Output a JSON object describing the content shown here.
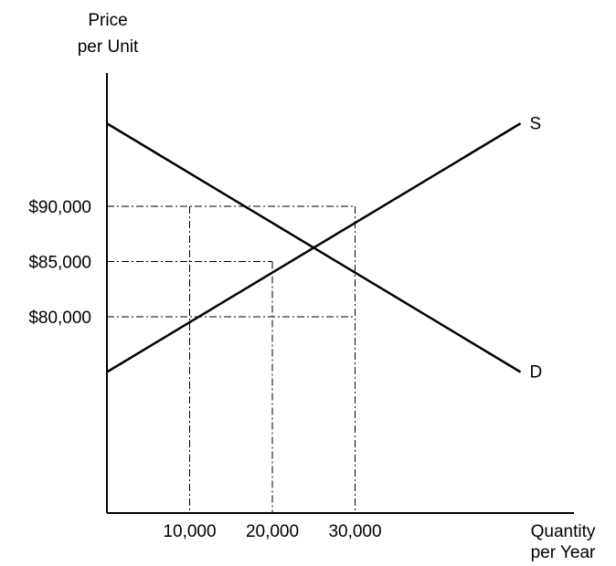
{
  "chart_data": {
    "type": "line",
    "title": "",
    "ylabel": [
      "Price",
      "per Unit"
    ],
    "xlabel": [
      "Quantity",
      "per Year"
    ],
    "xlim": [
      0,
      50000
    ],
    "ylim": [
      62000,
      102000
    ],
    "grid": false,
    "x_ticks": [
      {
        "value": 10000,
        "label": "10,000"
      },
      {
        "value": 20000,
        "label": "20,000"
      },
      {
        "value": 30000,
        "label": "30,000"
      }
    ],
    "y_ticks": [
      {
        "value": 80000,
        "label": "$80,000"
      },
      {
        "value": 85000,
        "label": "$85,000"
      },
      {
        "value": 90000,
        "label": "$90,000"
      }
    ],
    "series": [
      {
        "name": "S",
        "x": [
          0,
          50000
        ],
        "y": [
          75000,
          97500
        ]
      },
      {
        "name": "D",
        "x": [
          0,
          50000
        ],
        "y": [
          97500,
          75000
        ]
      }
    ],
    "reference_points": [
      {
        "x": 10000,
        "y": 90000
      },
      {
        "x": 20000,
        "y": 85000
      },
      {
        "x": 30000,
        "y": 90000
      },
      {
        "x": 10000,
        "y": 80000
      },
      {
        "x": 30000,
        "y": 80000
      }
    ]
  }
}
